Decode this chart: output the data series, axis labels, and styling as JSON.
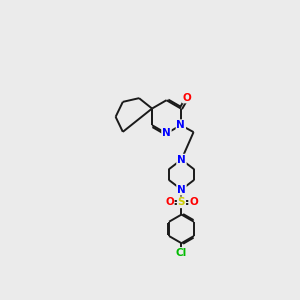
{
  "background_color": "#ebebeb",
  "bond_color": "#1a1a1a",
  "atom_colors": {
    "N": "#0000ff",
    "O": "#ff0000",
    "S": "#cccc00",
    "Cl": "#00bb00",
    "C": "#1a1a1a"
  },
  "figsize": [
    3.0,
    3.0
  ],
  "dpi": 100,
  "lw": 1.4
}
